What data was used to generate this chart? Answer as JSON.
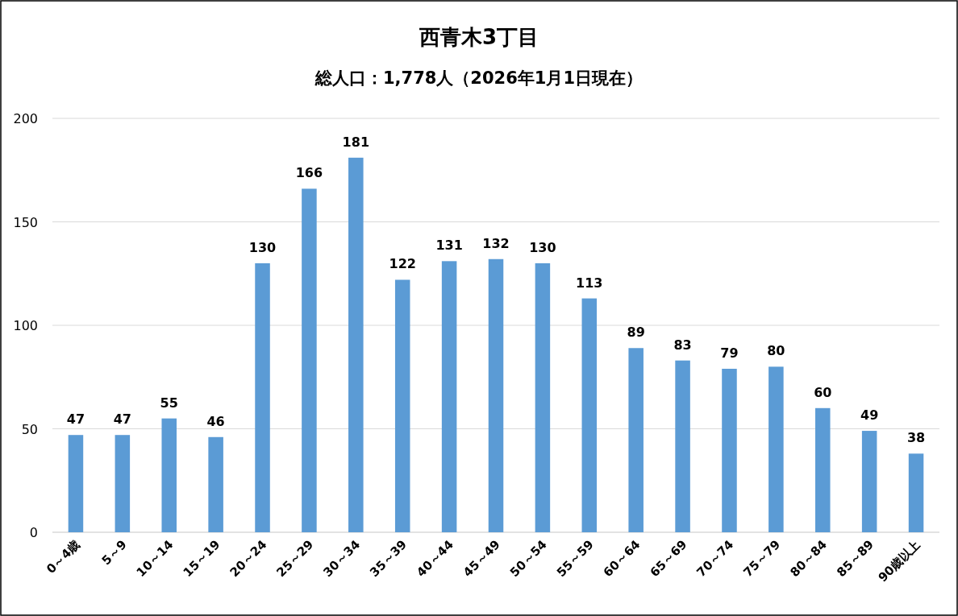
{
  "chart_data": {
    "type": "bar",
    "title": "西青木3丁目",
    "subtitle": "総人口：1,778人（2026年1月1日現在）",
    "categories": [
      "0～4歳",
      "5～9",
      "10～14",
      "15～19",
      "20～24",
      "25～29",
      "30～34",
      "35～39",
      "40～44",
      "45～49",
      "50～54",
      "55～59",
      "60～64",
      "65～69",
      "70～74",
      "75～79",
      "80～84",
      "85～89",
      "90歳以上"
    ],
    "values": [
      47,
      47,
      55,
      46,
      130,
      166,
      181,
      122,
      131,
      132,
      130,
      113,
      89,
      83,
      79,
      80,
      60,
      49,
      38
    ],
    "color": "#5b9bd5",
    "ylim": [
      0,
      200
    ],
    "yticks": [
      0,
      50,
      100,
      150,
      200
    ],
    "grid": "y",
    "data_labels": true
  }
}
